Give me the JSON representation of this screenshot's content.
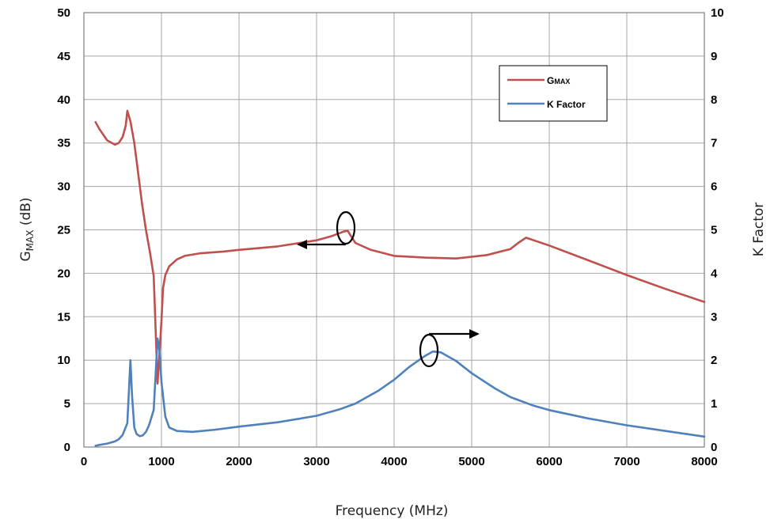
{
  "chart_data": {
    "type": "line",
    "title": "",
    "xlabel": "Frequency (MHz)",
    "ylabel_left": {
      "main": "G",
      "sub": "MAX",
      "suffix": " (dB)"
    },
    "ylabel_right": "K Factor",
    "xlim": [
      0,
      8000
    ],
    "ylim_left": [
      0,
      50
    ],
    "ylim_right": [
      0,
      10
    ],
    "x_ticks": [
      0,
      1000,
      2000,
      3000,
      4000,
      5000,
      6000,
      7000,
      8000
    ],
    "x_tick_labels": [
      "0",
      "1000",
      "2000",
      "3000",
      "4000",
      "5000",
      "6000",
      "7000",
      "8000"
    ],
    "y_left_ticks": [
      0,
      5,
      10,
      15,
      20,
      25,
      30,
      35,
      40,
      45,
      50
    ],
    "y_left_tick_labels": [
      "0",
      "5",
      "10",
      "15",
      "20",
      "25",
      "30",
      "35",
      "40",
      "45",
      "50"
    ],
    "y_right_ticks": [
      0,
      1,
      2,
      3,
      4,
      5,
      6,
      7,
      8,
      9,
      10
    ],
    "y_right_tick_labels": [
      "0",
      "1",
      "2",
      "3",
      "4",
      "5",
      "6",
      "7",
      "8",
      "9",
      "10"
    ],
    "grid": true,
    "legend_position": "top-right",
    "series": [
      {
        "name": "GMAX",
        "legend_main": "G",
        "legend_sub": "MAX",
        "axis": "left",
        "color": "#c0504d",
        "x": [
          150,
          200,
          300,
          400,
          450,
          500,
          540,
          560,
          600,
          650,
          700,
          750,
          800,
          850,
          900,
          950,
          980,
          1000,
          1020,
          1050,
          1100,
          1200,
          1300,
          1500,
          1800,
          2000,
          2500,
          3000,
          3200,
          3350,
          3400,
          3450,
          3500,
          3700,
          4000,
          4400,
          4800,
          5200,
          5500,
          5600,
          5700,
          6000,
          6500,
          7000,
          7500,
          8000
        ],
        "y": [
          37.4,
          36.6,
          35.3,
          34.8,
          35.0,
          35.7,
          37.0,
          38.7,
          37.5,
          35.0,
          31.5,
          28.0,
          25.0,
          22.5,
          19.7,
          7.3,
          11.5,
          14.5,
          18.3,
          19.8,
          20.8,
          21.6,
          22.0,
          22.3,
          22.5,
          22.7,
          23.1,
          23.8,
          24.3,
          24.8,
          24.9,
          24.2,
          23.5,
          22.7,
          22.0,
          21.8,
          21.7,
          22.1,
          22.8,
          23.5,
          24.1,
          23.2,
          21.5,
          19.8,
          18.2,
          16.7
        ]
      },
      {
        "name": "K Factor",
        "axis": "right",
        "color": "#4f81bd",
        "x": [
          150,
          200,
          300,
          400,
          450,
          500,
          560,
          600,
          620,
          650,
          680,
          720,
          760,
          800,
          840,
          900,
          950,
          975,
          1000,
          1050,
          1100,
          1200,
          1400,
          1700,
          2000,
          2500,
          3000,
          3300,
          3500,
          3800,
          4000,
          4200,
          4400,
          4500,
          4600,
          4800,
          5000,
          5300,
          5500,
          5800,
          6000,
          6500,
          7000,
          7500,
          8000
        ],
        "y": [
          0.03,
          0.05,
          0.08,
          0.13,
          0.18,
          0.28,
          0.55,
          2.0,
          1.2,
          0.45,
          0.3,
          0.25,
          0.27,
          0.35,
          0.5,
          0.85,
          2.5,
          2.2,
          1.5,
          0.7,
          0.45,
          0.37,
          0.35,
          0.4,
          0.47,
          0.57,
          0.72,
          0.87,
          1.0,
          1.3,
          1.55,
          1.85,
          2.1,
          2.2,
          2.18,
          1.98,
          1.7,
          1.35,
          1.15,
          0.95,
          0.85,
          0.66,
          0.5,
          0.37,
          0.24
        ]
      }
    ]
  }
}
